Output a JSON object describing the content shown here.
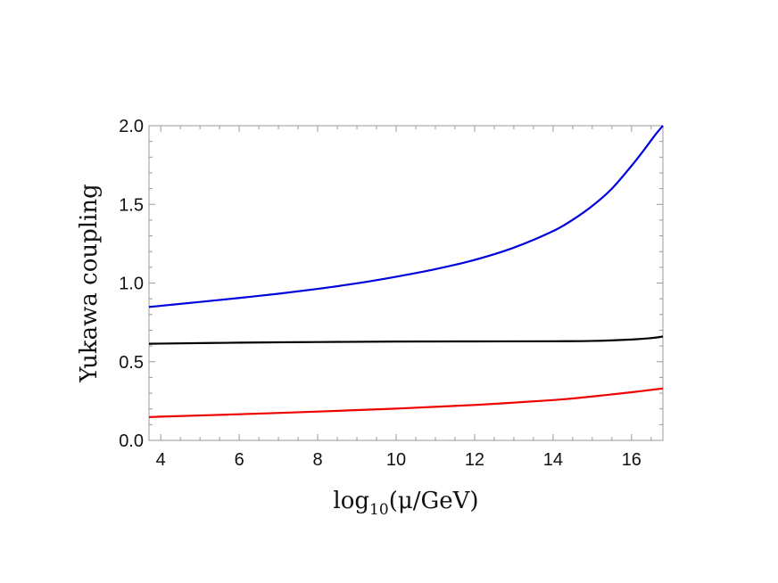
{
  "chart_data": {
    "type": "line",
    "title": "",
    "xlabel": "log10(μ/GeV)",
    "xlabel_parts": {
      "pre": "log",
      "sub": "10",
      "post": "(μ/GeV)"
    },
    "ylabel": "Yukawa coupling",
    "xlim": [
      3.7,
      16.8
    ],
    "ylim": [
      0.0,
      2.0
    ],
    "x_ticks": [
      4,
      6,
      8,
      10,
      12,
      14,
      16
    ],
    "x_tick_labels": [
      "4",
      "6",
      "8",
      "10",
      "12",
      "14",
      "16"
    ],
    "y_ticks": [
      0.0,
      0.5,
      1.0,
      1.5,
      2.0
    ],
    "y_tick_labels": [
      "0.0",
      "0.5",
      "1.0",
      "1.5",
      "2.0"
    ],
    "grid": false,
    "legend": "none",
    "series": [
      {
        "color": "#0000dd",
        "x": [
          3.7,
          4,
          5,
          6,
          7,
          8,
          9,
          10,
          11,
          12,
          13,
          14,
          14.5,
          15,
          15.5,
          16,
          16.3,
          16.6,
          16.8
        ],
        "y": [
          0.848,
          0.855,
          0.88,
          0.905,
          0.932,
          0.963,
          0.998,
          1.04,
          1.088,
          1.147,
          1.225,
          1.33,
          1.402,
          1.49,
          1.6,
          1.745,
          1.84,
          1.94,
          2.0
        ]
      },
      {
        "color": "#000000",
        "x": [
          3.7,
          4,
          6,
          8,
          10,
          12,
          14,
          15,
          16,
          16.5,
          16.8
        ],
        "y": [
          0.614,
          0.615,
          0.621,
          0.625,
          0.628,
          0.629,
          0.63,
          0.632,
          0.641,
          0.65,
          0.66
        ]
      },
      {
        "color": "#ee0000",
        "x": [
          3.7,
          4,
          6,
          8,
          10,
          12,
          14,
          15,
          16,
          16.8
        ],
        "y": [
          0.148,
          0.151,
          0.166,
          0.183,
          0.202,
          0.225,
          0.256,
          0.279,
          0.306,
          0.33
        ]
      }
    ]
  }
}
